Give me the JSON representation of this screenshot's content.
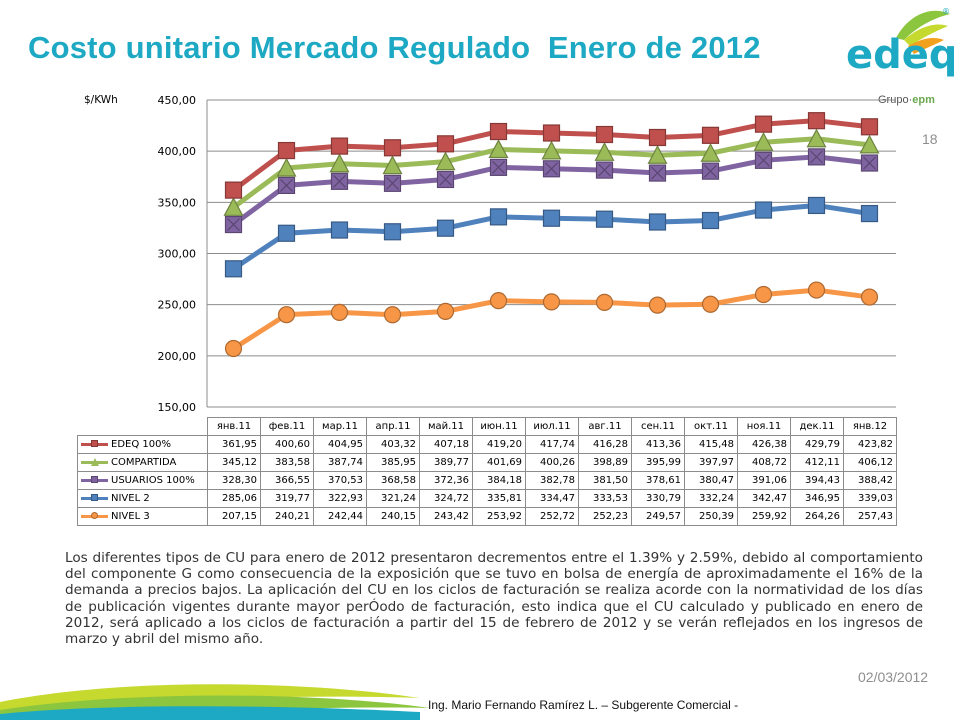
{
  "header": {
    "title": "Costo unitario Mercado Regulado  Enero de 2012",
    "page_number": "18"
  },
  "logo": {
    "brand": "edeq",
    "group": "Grupo·",
    "group_brand": "epm",
    "registered": "®"
  },
  "chart_data": {
    "type": "line",
    "ylabel": "$/KWh",
    "ylim": [
      150,
      450
    ],
    "yticks": [
      "150,00",
      "200,00",
      "250,00",
      "300,00",
      "350,00",
      "400,00",
      "450,00"
    ],
    "ytick_values": [
      150,
      200,
      250,
      300,
      350,
      400,
      450
    ],
    "grid": true,
    "legend": "data-table",
    "categories": [
      "янв.11",
      "фев.11",
      "мар.11",
      "апр.11",
      "май.11",
      "июн.11",
      "июл.11",
      "авг.11",
      "сен.11",
      "окт.11",
      "ноя.11",
      "дек.11",
      "янв.12"
    ],
    "series": [
      {
        "name": "EDEQ 100%",
        "color": "#c0504d",
        "marker": "square",
        "values": [
          361.95,
          400.6,
          404.95,
          403.32,
          407.18,
          419.2,
          417.74,
          416.28,
          413.36,
          415.48,
          426.38,
          429.79,
          423.82
        ],
        "labels": [
          "361,95",
          "400,60",
          "404,95",
          "403,32",
          "407,18",
          "419,20",
          "417,74",
          "416,28",
          "413,36",
          "415,48",
          "426,38",
          "429,79",
          "423,82"
        ]
      },
      {
        "name": "COMPARTIDA",
        "color": "#9bbb59",
        "marker": "triangle",
        "values": [
          345.12,
          383.58,
          387.74,
          385.95,
          389.77,
          401.69,
          400.26,
          398.89,
          395.99,
          397.97,
          408.72,
          412.11,
          406.12
        ],
        "labels": [
          "345,12",
          "383,58",
          "387,74",
          "385,95",
          "389,77",
          "401,69",
          "400,26",
          "398,89",
          "395,99",
          "397,97",
          "408,72",
          "412,11",
          "406,12"
        ]
      },
      {
        "name": "USUARIOS 100%",
        "color": "#8064a2",
        "marker": "x-square",
        "values": [
          328.3,
          366.55,
          370.53,
          368.58,
          372.36,
          384.18,
          382.78,
          381.5,
          378.61,
          380.47,
          391.06,
          394.43,
          388.42
        ],
        "labels": [
          "328,30",
          "366,55",
          "370,53",
          "368,58",
          "372,36",
          "384,18",
          "382,78",
          "381,50",
          "378,61",
          "380,47",
          "391,06",
          "394,43",
          "388,42"
        ]
      },
      {
        "name": "NIVEL 2",
        "color": "#4f81bd",
        "marker": "square",
        "values": [
          285.06,
          319.77,
          322.93,
          321.24,
          324.72,
          335.81,
          334.47,
          333.53,
          330.79,
          332.24,
          342.47,
          346.95,
          339.03
        ],
        "labels": [
          "285,06",
          "319,77",
          "322,93",
          "321,24",
          "324,72",
          "335,81",
          "334,47",
          "333,53",
          "330,79",
          "332,24",
          "342,47",
          "346,95",
          "339,03"
        ]
      },
      {
        "name": "NIVEL 3",
        "color": "#f79646",
        "marker": "circle",
        "values": [
          207.15,
          240.21,
          242.44,
          240.15,
          243.42,
          253.92,
          252.72,
          252.23,
          249.57,
          250.39,
          259.92,
          264.26,
          257.43
        ],
        "labels": [
          "207,15",
          "240,21",
          "242,44",
          "240,15",
          "243,42",
          "253,92",
          "252,72",
          "252,23",
          "249,57",
          "250,39",
          "259,92",
          "264,26",
          "257,43"
        ]
      }
    ]
  },
  "body": {
    "paragraph": "Los diferentes tipos de CU para enero de 2012 presentaron decrementos entre el 1.39% y 2.59%, debido al comportamiento del componente G como consecuencia de la exposición que se tuvo en bolsa de energía de aproximadamente el 16% de la demanda a precios bajos.  La aplicación del CU en los ciclos de facturación se realiza acorde con la normatividad de los días de publicación vigentes durante mayor perÓodo de facturación, esto indica que el CU calculado y publicado en enero de 2012, será aplicado a los ciclos de facturación a partir del 15 de febrero de 2012 y se verán reflejados en los ingresos de marzo y abril del mismo año."
  },
  "footer": {
    "date": "02/03/2012",
    "author": "Ing. Mario Fernando Ramírez L. – Subgerente Comercial -"
  }
}
